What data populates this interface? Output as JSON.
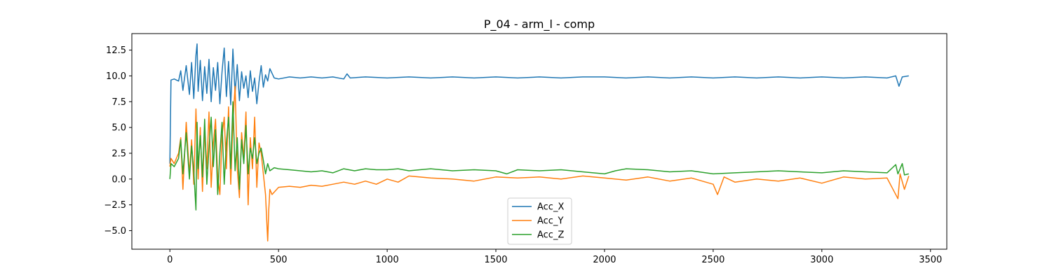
{
  "chart_data": {
    "type": "line",
    "title": "P_04 - arm_l - comp",
    "xlabel": "",
    "ylabel": "",
    "xlim": [
      -175,
      3575
    ],
    "ylim": [
      -6.8,
      14.1
    ],
    "xticks": [
      0,
      500,
      1000,
      1500,
      2000,
      2500,
      3000,
      3500
    ],
    "yticks": [
      -5.0,
      -2.5,
      0.0,
      2.5,
      5.0,
      7.5,
      10.0,
      12.5
    ],
    "ytick_labels": [
      "−5.0",
      "−2.5",
      "0.0",
      "2.5",
      "5.0",
      "7.5",
      "10.0",
      "12.5"
    ],
    "grid": false,
    "legend_position": "bottom-center",
    "series": [
      {
        "name": "Acc_X",
        "color": "#1f77b4",
        "x": [
          0,
          5,
          20,
          40,
          50,
          60,
          75,
          90,
          100,
          110,
          120,
          125,
          130,
          140,
          150,
          160,
          170,
          180,
          190,
          200,
          210,
          220,
          230,
          240,
          250,
          260,
          270,
          280,
          290,
          300,
          310,
          320,
          330,
          340,
          350,
          360,
          370,
          380,
          390,
          400,
          410,
          420,
          430,
          440,
          450,
          460,
          480,
          500,
          550,
          600,
          650,
          700,
          750,
          800,
          815,
          830,
          900,
          1000,
          1100,
          1200,
          1300,
          1400,
          1500,
          1600,
          1700,
          1800,
          1900,
          2000,
          2100,
          2200,
          2300,
          2400,
          2500,
          2600,
          2700,
          2800,
          2900,
          3000,
          3100,
          3200,
          3300,
          3340,
          3355,
          3370,
          3400
        ],
        "values": [
          1.5,
          9.6,
          9.7,
          9.5,
          10.5,
          8.6,
          11.0,
          8.2,
          11.3,
          7.8,
          12.0,
          13.1,
          8.5,
          11.5,
          7.6,
          10.9,
          8.3,
          11.6,
          7.5,
          10.8,
          8.6,
          11.3,
          7.3,
          10.4,
          12.7,
          8.0,
          11.4,
          7.2,
          12.6,
          8.3,
          11.1,
          7.6,
          10.4,
          8.8,
          10.0,
          7.9,
          10.5,
          8.5,
          9.8,
          7.3,
          9.4,
          11.0,
          8.9,
          10.1,
          9.5,
          10.7,
          9.8,
          9.7,
          9.9,
          9.8,
          9.9,
          9.8,
          9.9,
          9.7,
          10.2,
          9.8,
          9.9,
          9.8,
          9.9,
          9.8,
          9.9,
          9.8,
          9.9,
          9.8,
          9.9,
          9.8,
          9.9,
          9.9,
          9.8,
          9.9,
          9.8,
          9.9,
          9.8,
          9.9,
          9.8,
          9.9,
          9.8,
          9.9,
          9.8,
          9.9,
          9.8,
          10.0,
          9.0,
          9.9,
          10.0
        ]
      },
      {
        "name": "Acc_Y",
        "color": "#ff7f0e",
        "x": [
          0,
          5,
          20,
          40,
          50,
          60,
          75,
          90,
          100,
          110,
          120,
          125,
          130,
          140,
          150,
          160,
          170,
          180,
          190,
          200,
          210,
          220,
          230,
          240,
          250,
          260,
          270,
          280,
          290,
          300,
          310,
          320,
          330,
          340,
          350,
          360,
          370,
          380,
          390,
          400,
          410,
          420,
          430,
          440,
          450,
          455,
          460,
          470,
          500,
          550,
          600,
          650,
          700,
          750,
          800,
          850,
          900,
          950,
          1000,
          1050,
          1100,
          1200,
          1300,
          1400,
          1500,
          1600,
          1700,
          1800,
          1900,
          2000,
          2100,
          2200,
          2300,
          2400,
          2500,
          2520,
          2550,
          2600,
          2700,
          2800,
          2900,
          3000,
          3100,
          3200,
          3300,
          3350,
          3360,
          3380,
          3400
        ],
        "values": [
          1.2,
          2.0,
          1.5,
          2.5,
          4.0,
          -1.0,
          5.5,
          0.5,
          3.8,
          -0.5,
          6.8,
          3.0,
          0.0,
          5.0,
          -1.2,
          4.8,
          1.0,
          6.5,
          -0.8,
          3.5,
          5.8,
          0.2,
          -1.5,
          4.2,
          6.0,
          1.0,
          7.0,
          -0.5,
          5.5,
          9.0,
          1.0,
          -1.8,
          4.5,
          2.0,
          6.5,
          -2.5,
          4.0,
          1.0,
          6.0,
          -0.8,
          3.5,
          2.5,
          0.5,
          -1.5,
          -6.0,
          -3.0,
          -1.0,
          -1.5,
          -0.8,
          -0.7,
          -0.8,
          -0.6,
          -0.7,
          -0.5,
          -0.3,
          -0.5,
          -0.2,
          -0.5,
          0.0,
          -0.3,
          0.3,
          0.1,
          0.0,
          -0.2,
          0.2,
          0.1,
          0.2,
          0.0,
          0.3,
          0.1,
          -0.1,
          0.2,
          -0.2,
          0.1,
          -0.5,
          -1.5,
          0.2,
          -0.3,
          0.0,
          -0.2,
          0.1,
          -0.4,
          0.2,
          0.0,
          0.1,
          -1.9,
          0.5,
          -1.0,
          0.3
        ]
      },
      {
        "name": "Acc_Z",
        "color": "#2ca02c",
        "x": [
          0,
          5,
          20,
          40,
          50,
          60,
          75,
          90,
          100,
          110,
          120,
          125,
          130,
          140,
          150,
          160,
          170,
          180,
          190,
          200,
          210,
          220,
          230,
          240,
          250,
          260,
          270,
          280,
          290,
          300,
          310,
          320,
          330,
          340,
          350,
          360,
          370,
          380,
          390,
          400,
          410,
          420,
          430,
          440,
          450,
          460,
          480,
          500,
          550,
          600,
          650,
          700,
          750,
          800,
          850,
          900,
          950,
          1000,
          1050,
          1100,
          1150,
          1200,
          1300,
          1400,
          1500,
          1550,
          1600,
          1700,
          1800,
          1900,
          2000,
          2050,
          2100,
          2200,
          2300,
          2400,
          2500,
          2600,
          2700,
          2800,
          2900,
          3000,
          3100,
          3200,
          3300,
          3340,
          3350,
          3370,
          3380,
          3400
        ],
        "values": [
          0.0,
          1.5,
          1.2,
          2.0,
          3.8,
          0.5,
          4.5,
          0.0,
          3.2,
          0.8,
          -3.0,
          5.5,
          1.0,
          4.2,
          0.2,
          5.8,
          -0.5,
          3.0,
          6.0,
          1.2,
          4.8,
          -1.5,
          2.5,
          5.5,
          -0.5,
          3.5,
          6.0,
          1.0,
          7.5,
          0.8,
          4.0,
          -1.0,
          3.8,
          1.5,
          5.2,
          0.5,
          3.0,
          2.0,
          4.0,
          1.5,
          2.5,
          3.0,
          1.8,
          0.5,
          1.5,
          0.8,
          1.1,
          1.0,
          0.9,
          0.8,
          0.7,
          0.8,
          0.6,
          1.0,
          0.8,
          1.0,
          0.9,
          0.9,
          1.0,
          0.8,
          0.9,
          1.0,
          0.8,
          0.9,
          0.8,
          0.5,
          0.9,
          0.8,
          0.9,
          0.7,
          0.5,
          0.8,
          1.0,
          0.9,
          0.7,
          0.8,
          0.5,
          0.6,
          0.7,
          0.8,
          0.7,
          0.6,
          0.8,
          0.7,
          0.6,
          1.4,
          0.5,
          1.5,
          0.4,
          0.5
        ]
      }
    ]
  }
}
